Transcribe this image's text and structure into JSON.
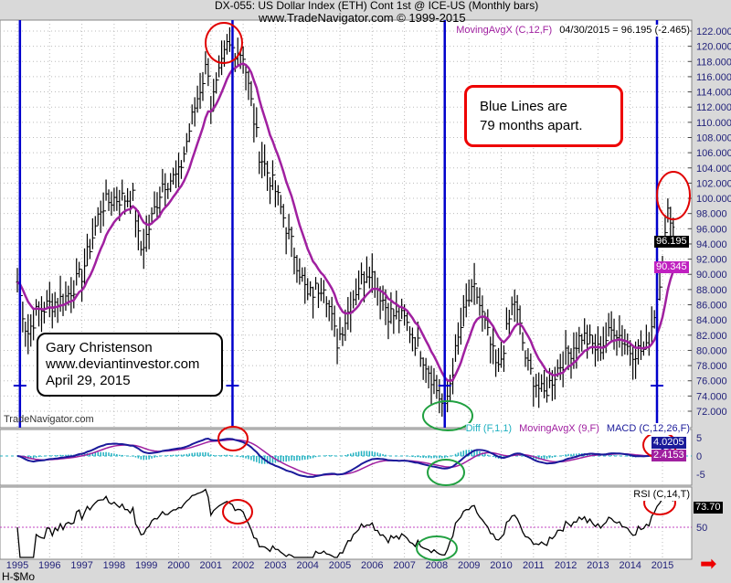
{
  "header": {
    "title": "DX-055:  US Dollar Index (ETH) Cont 1st @ ICE-US  (Monthly bars)",
    "copyright": "www.TradeNavigator.com © 1999-2015"
  },
  "main_legend": {
    "indicator": "MovingAvgX (C,12,F)",
    "readout": "04/30/2015 = 96.195 (-2.465)"
  },
  "watermark": "TradeNavigator.com",
  "annotations": {
    "blue_lines": [
      "Blue Lines are",
      "79 months apart."
    ],
    "author": [
      "Gary Christenson",
      "www.deviantinvestor.com",
      "April 29, 2015"
    ]
  },
  "macd_legend": {
    "diff": "Diff (F,1,1)",
    "signal": "MovingAvgX (9,F)",
    "macd": "MACD (C,12,26,F)",
    "macd_value": "4.0205",
    "signal_value": "2.4153"
  },
  "rsi_legend": {
    "label": "RSI (C,14,T)",
    "value": "73.70"
  },
  "footer": {
    "symbol": "H-$Mo"
  },
  "colors": {
    "bars": "#000000",
    "moving_avg": "#a020a0",
    "macd": "#1a1a9a",
    "diff": "#20b0c0",
    "blue_lines": "#0000cc",
    "red_circle": "#e00000",
    "green_circle": "#20a040"
  },
  "chart_data": [
    {
      "type": "bar",
      "title": "US Dollar Index (ETH) Cont 1st (Monthly bars)",
      "ylim": [
        72,
        122
      ],
      "y_ticks": [
        "122.000",
        "120.000",
        "118.000",
        "116.000",
        "114.000",
        "112.000",
        "110.000",
        "108.000",
        "106.000",
        "104.000",
        "102.000",
        "100.000",
        "98.000",
        "96.000",
        "94.000",
        "92.000",
        "90.000",
        "88.000",
        "86.000",
        "84.000",
        "82.000",
        "80.000",
        "78.000",
        "76.000",
        "74.000",
        "72.000"
      ],
      "last_close": "96.195",
      "last_ma": "90.345",
      "close_keyframes": [
        [
          1995.0,
          89
        ],
        [
          1995.3,
          82
        ],
        [
          1995.6,
          85
        ],
        [
          1996.0,
          86
        ],
        [
          1996.5,
          87
        ],
        [
          1997.0,
          90
        ],
        [
          1997.6,
          99
        ],
        [
          1998.0,
          100
        ],
        [
          1998.6,
          100
        ],
        [
          1998.8,
          93
        ],
        [
          1999.0,
          95
        ],
        [
          1999.5,
          102
        ],
        [
          2000.0,
          103
        ],
        [
          2000.5,
          112
        ],
        [
          2000.9,
          118
        ],
        [
          2001.0,
          112
        ],
        [
          2001.5,
          120
        ],
        [
          2002.0,
          119
        ],
        [
          2002.5,
          106
        ],
        [
          2003.0,
          101
        ],
        [
          2003.5,
          94
        ],
        [
          2004.0,
          87
        ],
        [
          2004.5,
          89
        ],
        [
          2004.9,
          81
        ],
        [
          2005.5,
          88
        ],
        [
          2005.9,
          91
        ],
        [
          2006.5,
          85
        ],
        [
          2007.0,
          84
        ],
        [
          2007.5,
          80
        ],
        [
          2007.9,
          76
        ],
        [
          2008.25,
          72
        ],
        [
          2008.6,
          80
        ],
        [
          2008.9,
          86
        ],
        [
          2009.2,
          88
        ],
        [
          2009.9,
          77
        ],
        [
          2010.4,
          87
        ],
        [
          2010.8,
          78
        ],
        [
          2011.3,
          74
        ],
        [
          2011.8,
          78
        ],
        [
          2012.5,
          82
        ],
        [
          2013.0,
          80
        ],
        [
          2013.5,
          83
        ],
        [
          2014.0,
          80
        ],
        [
          2014.5,
          80
        ],
        [
          2014.8,
          86
        ],
        [
          2015.0,
          92
        ],
        [
          2015.2,
          99
        ],
        [
          2015.33,
          96.2
        ]
      ],
      "vertical_lines": [
        1995.08,
        2001.67,
        2008.25,
        2014.83
      ]
    },
    {
      "type": "line",
      "title": "MACD (C,12,26,F)",
      "y_ticks": [
        "5",
        "0",
        "-5"
      ]
    },
    {
      "type": "line",
      "title": "RSI (C,14,T)",
      "y_ticks": [
        "50"
      ]
    }
  ],
  "x_ticks": [
    "1995",
    "1996",
    "1997",
    "1998",
    "1999",
    "2000",
    "2001",
    "2002",
    "2003",
    "2004",
    "2005",
    "2006",
    "2007",
    "2008",
    "2009",
    "2010",
    "2011",
    "2012",
    "2013",
    "2014",
    "2015"
  ]
}
